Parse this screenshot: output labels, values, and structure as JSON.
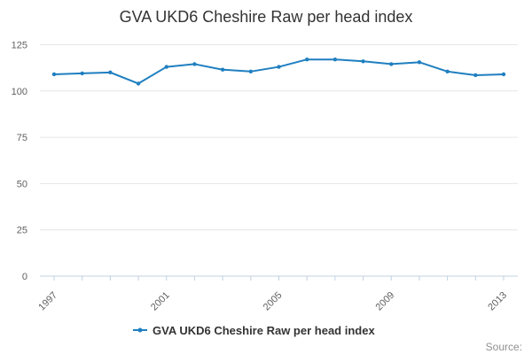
{
  "chart_data": {
    "type": "line",
    "title": "GVA UKD6 Cheshire Raw per head index",
    "xlabel": "",
    "ylabel": "",
    "x": [
      1997,
      1998,
      1999,
      2000,
      2001,
      2002,
      2003,
      2004,
      2005,
      2006,
      2007,
      2008,
      2009,
      2010,
      2011,
      2012,
      2013
    ],
    "x_tick_labels": [
      "1997",
      "2001",
      "2005",
      "2009",
      "2013"
    ],
    "y_tick_labels": [
      "0",
      "25",
      "50",
      "75",
      "100",
      "125"
    ],
    "ylim": [
      0,
      130
    ],
    "grid": true,
    "legend_position": "bottom",
    "series": [
      {
        "name": "GVA UKD6 Cheshire Raw per head index",
        "values": [
          109,
          109.5,
          110,
          104,
          113,
          114.5,
          111.5,
          110.5,
          113,
          117,
          117,
          116,
          114.5,
          115.5,
          110.5,
          108.5,
          109
        ],
        "color": "#1f7fc0"
      }
    ],
    "source_label": "Source:"
  }
}
